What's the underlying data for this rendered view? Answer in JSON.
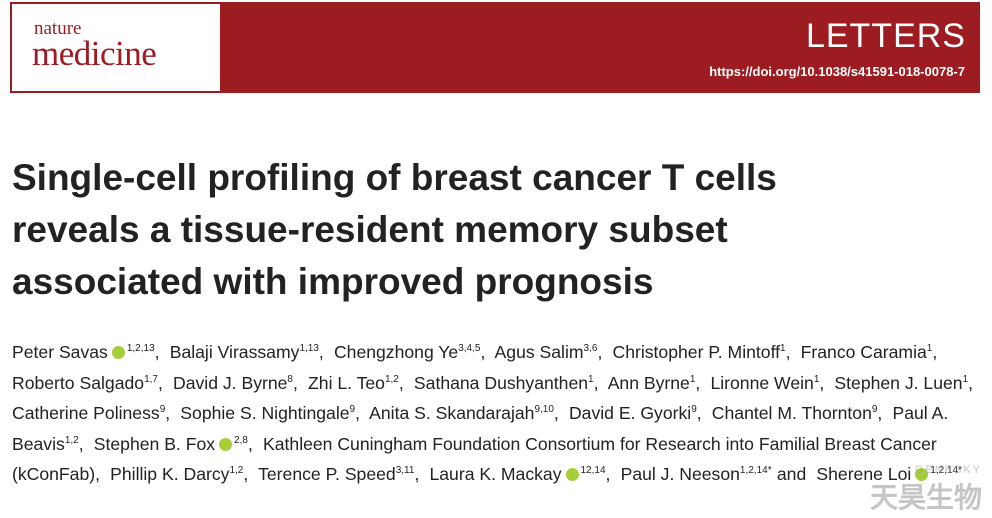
{
  "header": {
    "logo_top": "nature",
    "logo_bottom": "medicine",
    "section": "LETTERS",
    "doi": "https://doi.org/10.1038/s41591-018-0078-7"
  },
  "title_lines": [
    "Single-cell profiling of breast cancer T cells",
    "reveals a tissue-resident memory subset",
    "associated with improved prognosis"
  ],
  "authors": [
    {
      "name": "Peter Savas",
      "orcid": true,
      "affiliations": "1,2,13",
      "after": ","
    },
    {
      "name": "Balaji Virassamy",
      "orcid": false,
      "affiliations": "1,13",
      "after": ","
    },
    {
      "name": "Chengzhong Ye",
      "orcid": false,
      "affiliations": "3,4,5",
      "after": ","
    },
    {
      "name": "Agus Salim",
      "orcid": false,
      "affiliations": "3,6",
      "after": ","
    },
    {
      "name": "Christopher P. Mintoff",
      "orcid": false,
      "affiliations": "1",
      "after": ","
    },
    {
      "name": "Franco Caramia",
      "orcid": false,
      "affiliations": "1",
      "after": ","
    },
    {
      "name": "Roberto Salgado",
      "orcid": false,
      "affiliations": "1,7",
      "after": ","
    },
    {
      "name": "David J. Byrne",
      "orcid": false,
      "affiliations": "8",
      "after": ","
    },
    {
      "name": "Zhi L. Teo",
      "orcid": false,
      "affiliations": "1,2",
      "after": ","
    },
    {
      "name": "Sathana Dushyanthen",
      "orcid": false,
      "affiliations": "1",
      "after": ","
    },
    {
      "name": "Ann Byrne",
      "orcid": false,
      "affiliations": "1",
      "after": ","
    },
    {
      "name": "Lironne Wein",
      "orcid": false,
      "affiliations": "1",
      "after": ","
    },
    {
      "name": "Stephen J. Luen",
      "orcid": false,
      "affiliations": "1",
      "after": ","
    },
    {
      "name": "Catherine Poliness",
      "orcid": false,
      "affiliations": "9",
      "after": ","
    },
    {
      "name": "Sophie S. Nightingale",
      "orcid": false,
      "affiliations": "9",
      "after": ","
    },
    {
      "name": "Anita S. Skandarajah",
      "orcid": false,
      "affiliations": "9,10",
      "after": ","
    },
    {
      "name": "David E. Gyorki",
      "orcid": false,
      "affiliations": "9",
      "after": ","
    },
    {
      "name": "Chantel M. Thornton",
      "orcid": false,
      "affiliations": "9",
      "after": ","
    },
    {
      "name": "Paul A. Beavis",
      "orcid": false,
      "affiliations": "1,2",
      "after": ","
    },
    {
      "name": "Stephen B. Fox",
      "orcid": true,
      "affiliations": "2,8",
      "after": ","
    },
    {
      "name": "Kathleen Cuningham Foundation Consortium for Research into Familial Breast Cancer (kConFab)",
      "orcid": false,
      "affiliations": "",
      "after": ","
    },
    {
      "name": "Phillip K. Darcy",
      "orcid": false,
      "affiliations": "1,2",
      "after": ","
    },
    {
      "name": "Terence P. Speed",
      "orcid": false,
      "affiliations": "3,11",
      "after": ","
    },
    {
      "name": "Laura K. Mackay",
      "orcid": true,
      "affiliations": "12,14",
      "after": ","
    },
    {
      "name": "Paul J. Neeson",
      "orcid": false,
      "affiliations": "1,2,14*",
      "after": "and"
    },
    {
      "name": "Sherene Loi",
      "orcid": true,
      "affiliations": "1,2,14*",
      "after": ""
    }
  ],
  "watermark": {
    "latin": "GENESKY",
    "chinese": "天昊生物"
  }
}
